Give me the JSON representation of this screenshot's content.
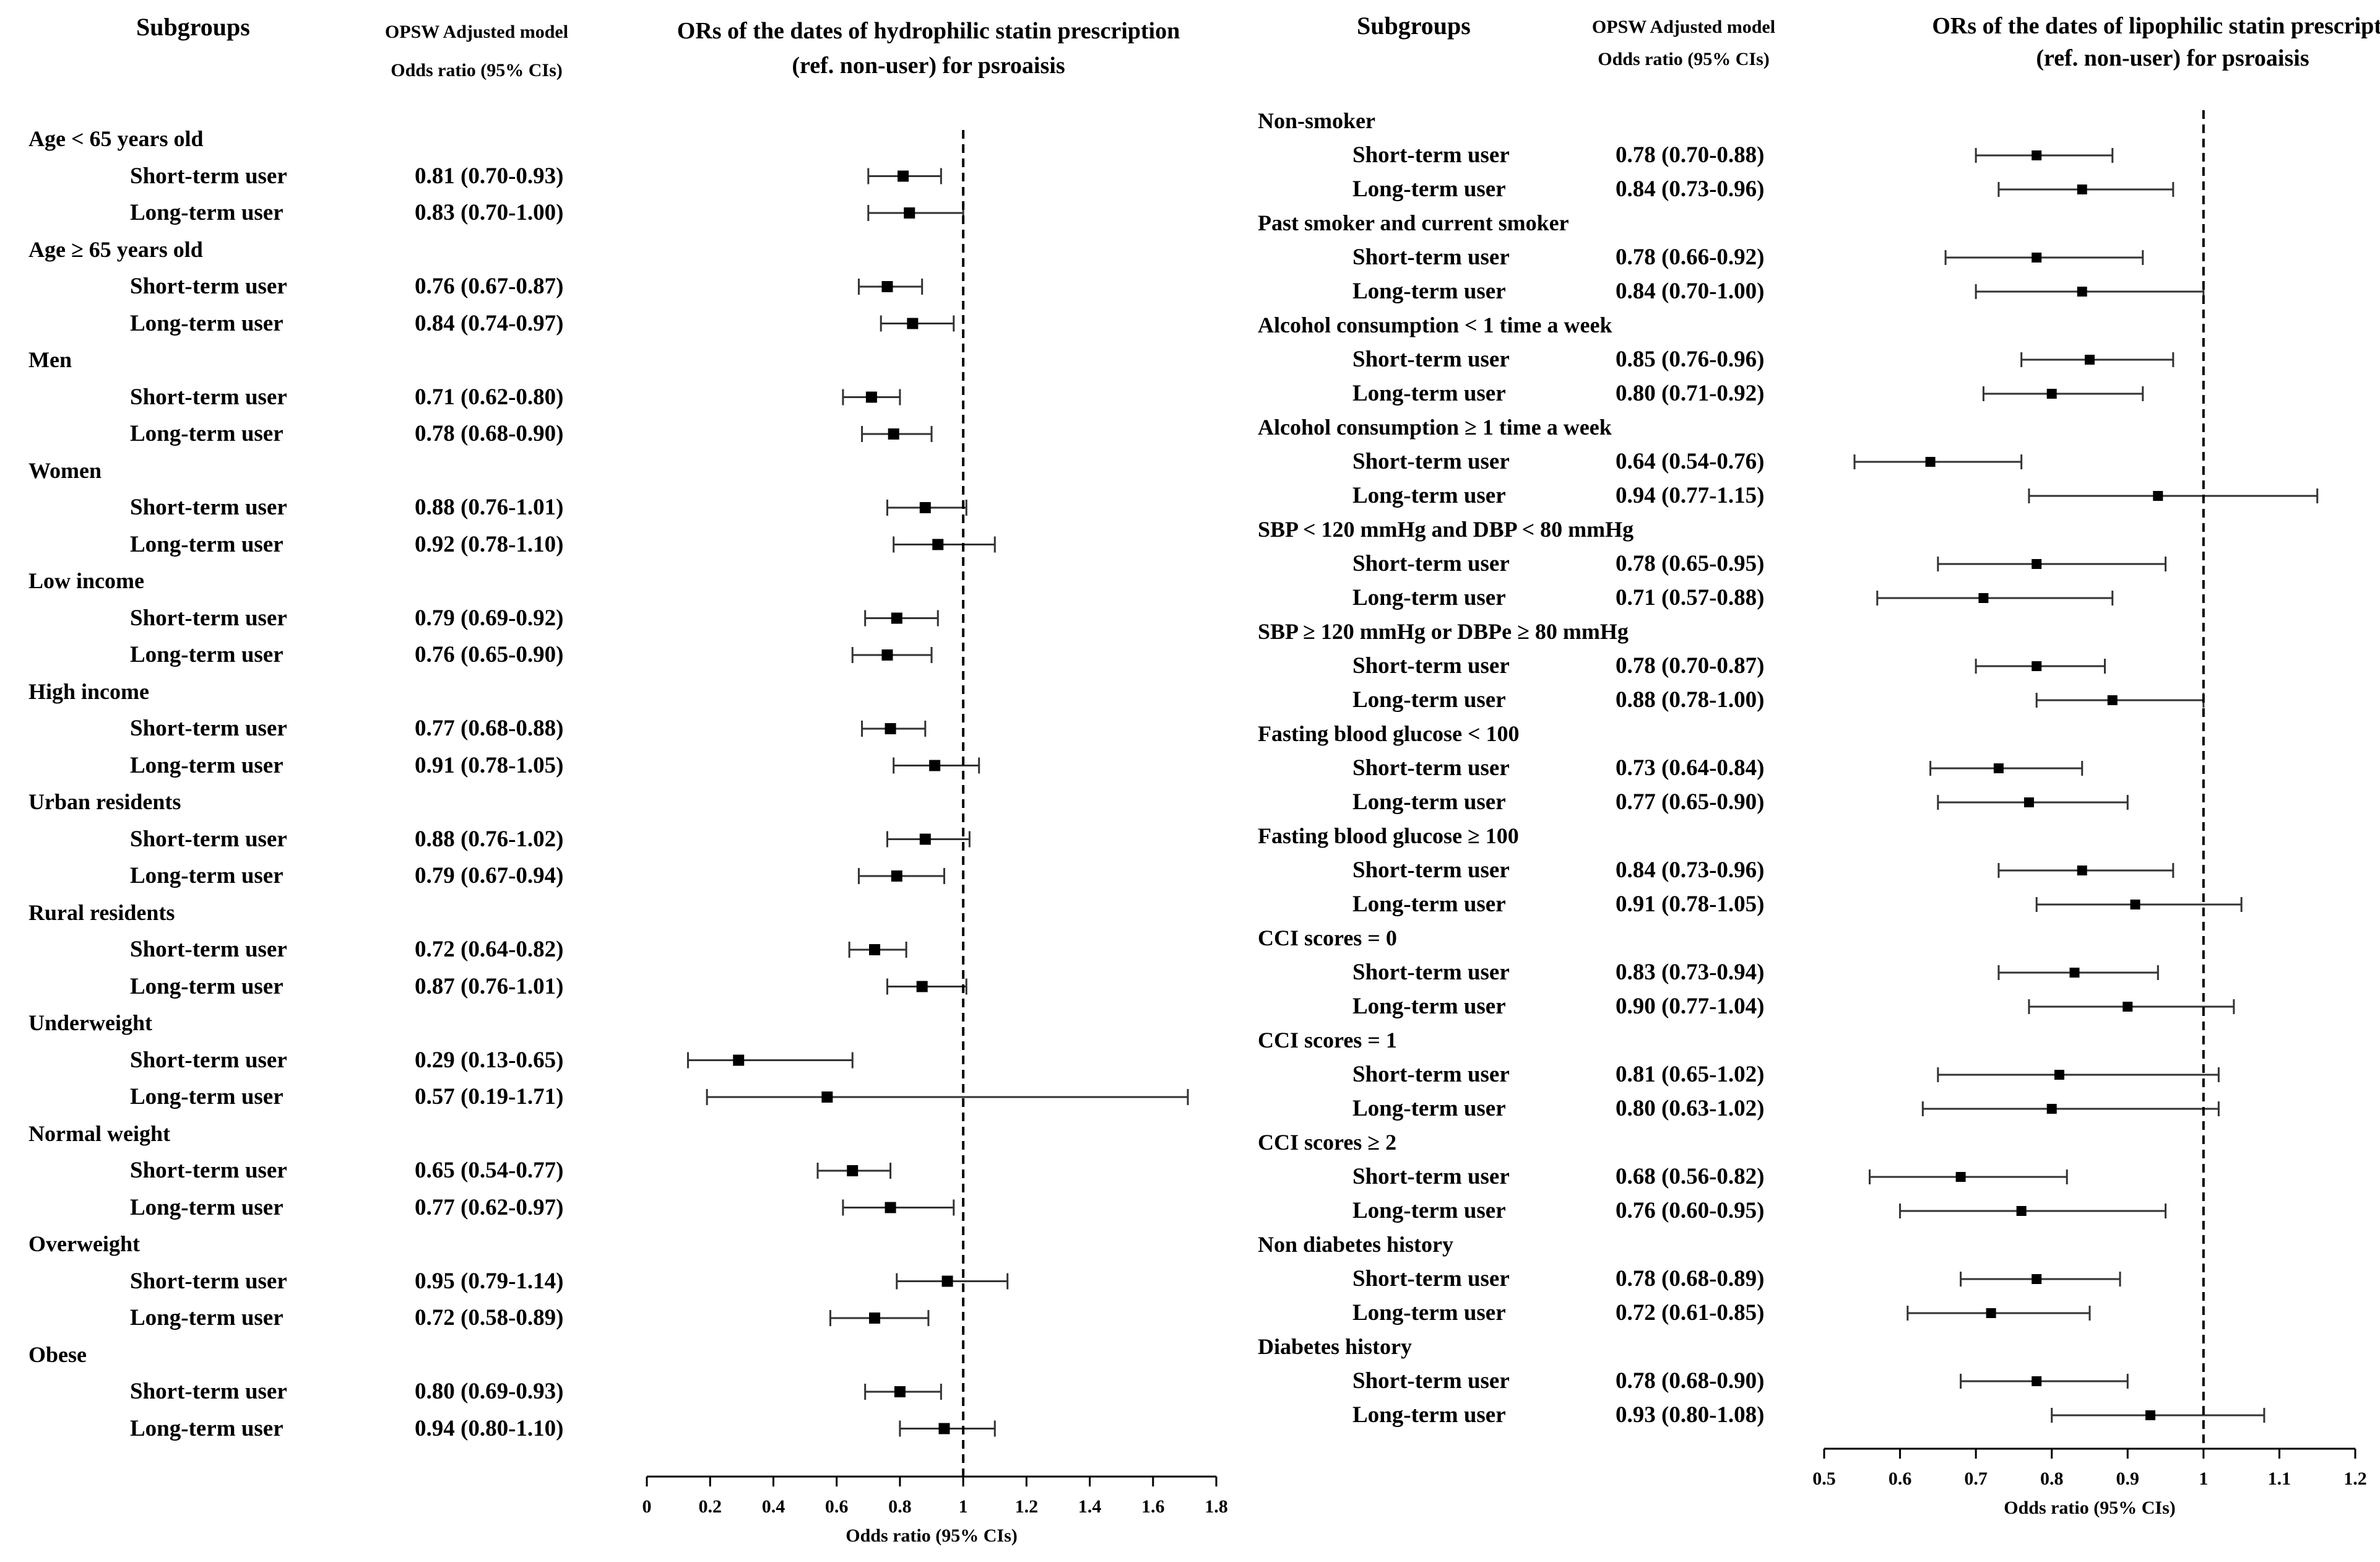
{
  "left": {
    "headers": {
      "subgroups": "Subgroups",
      "model_line1": "OPSW Adjusted model",
      "model_line2": "Odds ratio (95% CIs)",
      "plot_line1": "ORs of the dates of hydrophilic statin prescription",
      "plot_line2": "(ref. non-user) for psroaisis"
    },
    "groups": [
      {
        "name": "Age < 65 years old",
        "rows": [
          {
            "label": "Short-term user",
            "or_text": "0.81 (0.70-0.93)"
          },
          {
            "label": "Long-term user",
            "or_text": "0.83 (0.70-1.00)"
          }
        ]
      },
      {
        "name": "Age ≥ 65 years old",
        "rows": [
          {
            "label": "Short-term user",
            "or_text": "0.76 (0.67-0.87)"
          },
          {
            "label": "Long-term user",
            "or_text": "0.84 (0.74-0.97)"
          }
        ]
      },
      {
        "name": "Men",
        "rows": [
          {
            "label": "Short-term user",
            "or_text": "0.71 (0.62-0.80)"
          },
          {
            "label": "Long-term user",
            "or_text": "0.78 (0.68-0.90)"
          }
        ]
      },
      {
        "name": "Women",
        "rows": [
          {
            "label": "Short-term user",
            "or_text": "0.88 (0.76-1.01)"
          },
          {
            "label": "Long-term user",
            "or_text": "0.92 (0.78-1.10)"
          }
        ]
      },
      {
        "name": "Low income",
        "rows": [
          {
            "label": "Short-term user",
            "or_text": "0.79 (0.69-0.92)"
          },
          {
            "label": "Long-term user",
            "or_text": "0.76 (0.65-0.90)"
          }
        ]
      },
      {
        "name": "High income",
        "rows": [
          {
            "label": "Short-term user",
            "or_text": "0.77 (0.68-0.88)"
          },
          {
            "label": "Long-term user",
            "or_text": "0.91 (0.78-1.05)"
          }
        ]
      },
      {
        "name": "Urban residents",
        "rows": [
          {
            "label": "Short-term user",
            "or_text": "0.88 (0.76-1.02)"
          },
          {
            "label": "Long-term user",
            "or_text": "0.79 (0.67-0.94)"
          }
        ]
      },
      {
        "name": "Rural residents",
        "rows": [
          {
            "label": "Short-term user",
            "or_text": "0.72 (0.64-0.82)"
          },
          {
            "label": "Long-term user",
            "or_text": "0.87 (0.76-1.01)"
          }
        ]
      },
      {
        "name": "Underweight",
        "rows": [
          {
            "label": "Short-term user",
            "or_text": "0.29 (0.13-0.65)"
          },
          {
            "label": "Long-term user",
            "or_text": "0.57 (0.19-1.71)"
          }
        ]
      },
      {
        "name": "Normal weight",
        "rows": [
          {
            "label": "Short-term user",
            "or_text": "0.65 (0.54-0.77)"
          },
          {
            "label": "Long-term user",
            "or_text": "0.77 (0.62-0.97)"
          }
        ]
      },
      {
        "name": "Overweight",
        "rows": [
          {
            "label": "Short-term user",
            "or_text": "0.95 (0.79-1.14)"
          },
          {
            "label": "Long-term user",
            "or_text": "0.72 (0.58-0.89)"
          }
        ]
      },
      {
        "name": "Obese",
        "rows": [
          {
            "label": "Short-term user",
            "or_text": "0.80 (0.69-0.93)"
          },
          {
            "label": "Long-term user",
            "or_text": "0.94 (0.80-1.10)"
          }
        ]
      }
    ]
  },
  "right": {
    "headers": {
      "subgroups": "Subgroups",
      "model_line1": "OPSW Adjusted model",
      "model_line2": "Odds ratio (95% CIs)",
      "plot_line1": "ORs of the dates of lipophilic statin prescription",
      "plot_line2": "(ref. non-user) for psroaisis"
    },
    "groups": [
      {
        "name": "Non-smoker",
        "rows": [
          {
            "label": "Short-term user",
            "or_text": "0.78 (0.70-0.88)"
          },
          {
            "label": "Long-term user",
            "or_text": "0.84 (0.73-0.96)"
          }
        ]
      },
      {
        "name": "Past smoker and current smoker",
        "rows": [
          {
            "label": "Short-term user",
            "or_text": "0.78 (0.66-0.92)"
          },
          {
            "label": "Long-term user",
            "or_text": "0.84 (0.70-1.00)"
          }
        ]
      },
      {
        "name": "Alcohol consumption < 1 time a week",
        "rows": [
          {
            "label": "Short-term user",
            "or_text": "0.85 (0.76-0.96)"
          },
          {
            "label": "Long-term user",
            "or_text": "0.80 (0.71-0.92)"
          }
        ]
      },
      {
        "name": "Alcohol consumption ≥ 1 time a week",
        "rows": [
          {
            "label": "Short-term user",
            "or_text": "0.64 (0.54-0.76)"
          },
          {
            "label": "Long-term user",
            "or_text": "0.94 (0.77-1.15)"
          }
        ]
      },
      {
        "name": "SBP < 120 mmHg and DBP < 80 mmHg",
        "rows": [
          {
            "label": "Short-term user",
            "or_text": "0.78 (0.65-0.95)"
          },
          {
            "label": "Long-term user",
            "or_text": "0.71 (0.57-0.88)"
          }
        ]
      },
      {
        "name": "SBP ≥ 120 mmHg or DBPe ≥ 80 mmHg",
        "rows": [
          {
            "label": "Short-term user",
            "or_text": "0.78 (0.70-0.87)"
          },
          {
            "label": "Long-term user",
            "or_text": "0.88 (0.78-1.00)"
          }
        ]
      },
      {
        "name": "Fasting blood glucose < 100",
        "rows": [
          {
            "label": "Short-term user",
            "or_text": "0.73 (0.64-0.84)"
          },
          {
            "label": "Long-term user",
            "or_text": "0.77 (0.65-0.90)"
          }
        ]
      },
      {
        "name": "Fasting blood glucose ≥ 100",
        "rows": [
          {
            "label": "Short-term user",
            "or_text": "0.84 (0.73-0.96)"
          },
          {
            "label": "Long-term user",
            "or_text": "0.91 (0.78-1.05)"
          }
        ]
      },
      {
        "name": "CCI scores = 0",
        "rows": [
          {
            "label": "Short-term user",
            "or_text": "0.83 (0.73-0.94)"
          },
          {
            "label": "Long-term user",
            "or_text": "0.90 (0.77-1.04)"
          }
        ]
      },
      {
        "name": "CCI scores = 1",
        "rows": [
          {
            "label": "Short-term user",
            "or_text": "0.81 (0.65-1.02)"
          },
          {
            "label": "Long-term user",
            "or_text": "0.80 (0.63-1.02)"
          }
        ]
      },
      {
        "name": "CCI scores ≥ 2",
        "rows": [
          {
            "label": "Short-term user",
            "or_text": "0.68 (0.56-0.82)"
          },
          {
            "label": "Long-term user",
            "or_text": "0.76 (0.60-0.95)"
          }
        ]
      },
      {
        "name": "Non diabetes history",
        "rows": [
          {
            "label": "Short-term user",
            "or_text": "0.78 (0.68-0.89)"
          },
          {
            "label": "Long-term user",
            "or_text": "0.72 (0.61-0.85)"
          }
        ]
      },
      {
        "name": "Diabetes history",
        "rows": [
          {
            "label": "Short-term user",
            "or_text": "0.78 (0.68-0.90)"
          },
          {
            "label": "Long-term user",
            "or_text": "0.93 (0.80-1.08)"
          }
        ]
      }
    ]
  },
  "chart_data": [
    {
      "type": "forest",
      "title": "ORs of the dates of hydrophilic statin prescription (ref. non-user) for psroaisis",
      "xlabel": "Odds ratio (95% CIs)",
      "xlim": [
        0,
        1.8
      ],
      "xticks": [
        0,
        0.2,
        0.4,
        0.6,
        0.8,
        1,
        1.2,
        1.4,
        1.6,
        1.8
      ],
      "xtick_labels": [
        "0",
        "0.2",
        "0.4",
        "0.6",
        "0.8",
        "1",
        "1.2",
        "1.4",
        "1.6",
        "1.8"
      ],
      "reference_line": 1,
      "points": [
        {
          "group": "Age < 65 years old",
          "row": "Short-term user",
          "or": 0.81,
          "lo": 0.7,
          "hi": 0.93
        },
        {
          "group": "Age < 65 years old",
          "row": "Long-term user",
          "or": 0.83,
          "lo": 0.7,
          "hi": 1.0
        },
        {
          "group": "Age ≥ 65 years old",
          "row": "Short-term user",
          "or": 0.76,
          "lo": 0.67,
          "hi": 0.87
        },
        {
          "group": "Age ≥ 65 years old",
          "row": "Long-term user",
          "or": 0.84,
          "lo": 0.74,
          "hi": 0.97
        },
        {
          "group": "Men",
          "row": "Short-term user",
          "or": 0.71,
          "lo": 0.62,
          "hi": 0.8
        },
        {
          "group": "Men",
          "row": "Long-term user",
          "or": 0.78,
          "lo": 0.68,
          "hi": 0.9
        },
        {
          "group": "Women",
          "row": "Short-term user",
          "or": 0.88,
          "lo": 0.76,
          "hi": 1.01
        },
        {
          "group": "Women",
          "row": "Long-term user",
          "or": 0.92,
          "lo": 0.78,
          "hi": 1.1
        },
        {
          "group": "Low income",
          "row": "Short-term user",
          "or": 0.79,
          "lo": 0.69,
          "hi": 0.92
        },
        {
          "group": "Low income",
          "row": "Long-term user",
          "or": 0.76,
          "lo": 0.65,
          "hi": 0.9
        },
        {
          "group": "High income",
          "row": "Short-term user",
          "or": 0.77,
          "lo": 0.68,
          "hi": 0.88
        },
        {
          "group": "High income",
          "row": "Long-term user",
          "or": 0.91,
          "lo": 0.78,
          "hi": 1.05
        },
        {
          "group": "Urban residents",
          "row": "Short-term user",
          "or": 0.88,
          "lo": 0.76,
          "hi": 1.02
        },
        {
          "group": "Urban residents",
          "row": "Long-term user",
          "or": 0.79,
          "lo": 0.67,
          "hi": 0.94
        },
        {
          "group": "Rural residents",
          "row": "Short-term user",
          "or": 0.72,
          "lo": 0.64,
          "hi": 0.82
        },
        {
          "group": "Rural residents",
          "row": "Long-term user",
          "or": 0.87,
          "lo": 0.76,
          "hi": 1.01
        },
        {
          "group": "Underweight",
          "row": "Short-term user",
          "or": 0.29,
          "lo": 0.13,
          "hi": 0.65
        },
        {
          "group": "Underweight",
          "row": "Long-term user",
          "or": 0.57,
          "lo": 0.19,
          "hi": 1.71
        },
        {
          "group": "Normal weight",
          "row": "Short-term user",
          "or": 0.65,
          "lo": 0.54,
          "hi": 0.77
        },
        {
          "group": "Normal weight",
          "row": "Long-term user",
          "or": 0.77,
          "lo": 0.62,
          "hi": 0.97
        },
        {
          "group": "Overweight",
          "row": "Short-term user",
          "or": 0.95,
          "lo": 0.79,
          "hi": 1.14
        },
        {
          "group": "Overweight",
          "row": "Long-term user",
          "or": 0.72,
          "lo": 0.58,
          "hi": 0.89
        },
        {
          "group": "Obese",
          "row": "Short-term user",
          "or": 0.8,
          "lo": 0.69,
          "hi": 0.93
        },
        {
          "group": "Obese",
          "row": "Long-term user",
          "or": 0.94,
          "lo": 0.8,
          "hi": 1.1
        }
      ]
    },
    {
      "type": "forest",
      "title": "ORs of the dates of lipophilic statin prescription (ref. non-user) for psroaisis",
      "xlabel": "Odds ratio (95% CIs)",
      "xlim": [
        0.5,
        1.2
      ],
      "xticks": [
        0.5,
        0.6,
        0.7,
        0.8,
        0.9,
        1,
        1.1,
        1.2
      ],
      "xtick_labels": [
        "0.5",
        "0.6",
        "0.7",
        "0.8",
        "0.9",
        "1",
        "1.1",
        "1.2"
      ],
      "reference_line": 1,
      "points": [
        {
          "group": "Non-smoker",
          "row": "Short-term user",
          "or": 0.78,
          "lo": 0.7,
          "hi": 0.88
        },
        {
          "group": "Non-smoker",
          "row": "Long-term user",
          "or": 0.84,
          "lo": 0.73,
          "hi": 0.96
        },
        {
          "group": "Past smoker and current smoker",
          "row": "Short-term user",
          "or": 0.78,
          "lo": 0.66,
          "hi": 0.92
        },
        {
          "group": "Past smoker and current smoker",
          "row": "Long-term user",
          "or": 0.84,
          "lo": 0.7,
          "hi": 1.0
        },
        {
          "group": "Alcohol consumption < 1 time a week",
          "row": "Short-term user",
          "or": 0.85,
          "lo": 0.76,
          "hi": 0.96
        },
        {
          "group": "Alcohol consumption < 1 time a week",
          "row": "Long-term user",
          "or": 0.8,
          "lo": 0.71,
          "hi": 0.92
        },
        {
          "group": "Alcohol consumption ≥ 1 time a week",
          "row": "Short-term user",
          "or": 0.64,
          "lo": 0.54,
          "hi": 0.76
        },
        {
          "group": "Alcohol consumption ≥ 1 time a week",
          "row": "Long-term user",
          "or": 0.94,
          "lo": 0.77,
          "hi": 1.15
        },
        {
          "group": "SBP < 120 mmHg and DBP < 80 mmHg",
          "row": "Short-term user",
          "or": 0.78,
          "lo": 0.65,
          "hi": 0.95
        },
        {
          "group": "SBP < 120 mmHg and DBP < 80 mmHg",
          "row": "Long-term user",
          "or": 0.71,
          "lo": 0.57,
          "hi": 0.88
        },
        {
          "group": "SBP ≥ 120 mmHg or DBPe ≥ 80 mmHg",
          "row": "Short-term user",
          "or": 0.78,
          "lo": 0.7,
          "hi": 0.87
        },
        {
          "group": "SBP ≥ 120 mmHg or DBPe ≥ 80 mmHg",
          "row": "Long-term user",
          "or": 0.88,
          "lo": 0.78,
          "hi": 1.0
        },
        {
          "group": "Fasting blood glucose < 100",
          "row": "Short-term user",
          "or": 0.73,
          "lo": 0.64,
          "hi": 0.84
        },
        {
          "group": "Fasting blood glucose < 100",
          "row": "Long-term user",
          "or": 0.77,
          "lo": 0.65,
          "hi": 0.9
        },
        {
          "group": "Fasting blood glucose ≥ 100",
          "row": "Short-term user",
          "or": 0.84,
          "lo": 0.73,
          "hi": 0.96
        },
        {
          "group": "Fasting blood glucose ≥ 100",
          "row": "Long-term user",
          "or": 0.91,
          "lo": 0.78,
          "hi": 1.05
        },
        {
          "group": "CCI scores = 0",
          "row": "Short-term user",
          "or": 0.83,
          "lo": 0.73,
          "hi": 0.94
        },
        {
          "group": "CCI scores = 0",
          "row": "Long-term user",
          "or": 0.9,
          "lo": 0.77,
          "hi": 1.04
        },
        {
          "group": "CCI scores = 1",
          "row": "Short-term user",
          "or": 0.81,
          "lo": 0.65,
          "hi": 1.02
        },
        {
          "group": "CCI scores = 1",
          "row": "Long-term user",
          "or": 0.8,
          "lo": 0.63,
          "hi": 1.02
        },
        {
          "group": "CCI scores ≥ 2",
          "row": "Short-term user",
          "or": 0.68,
          "lo": 0.56,
          "hi": 0.82
        },
        {
          "group": "CCI scores ≥ 2",
          "row": "Long-term user",
          "or": 0.76,
          "lo": 0.6,
          "hi": 0.95
        },
        {
          "group": "Non diabetes history",
          "row": "Short-term user",
          "or": 0.78,
          "lo": 0.68,
          "hi": 0.89
        },
        {
          "group": "Non diabetes history",
          "row": "Long-term user",
          "or": 0.72,
          "lo": 0.61,
          "hi": 0.85
        },
        {
          "group": "Diabetes history",
          "row": "Short-term user",
          "or": 0.78,
          "lo": 0.68,
          "hi": 0.9
        },
        {
          "group": "Diabetes history",
          "row": "Long-term user",
          "or": 0.93,
          "lo": 0.8,
          "hi": 1.08
        }
      ]
    }
  ]
}
